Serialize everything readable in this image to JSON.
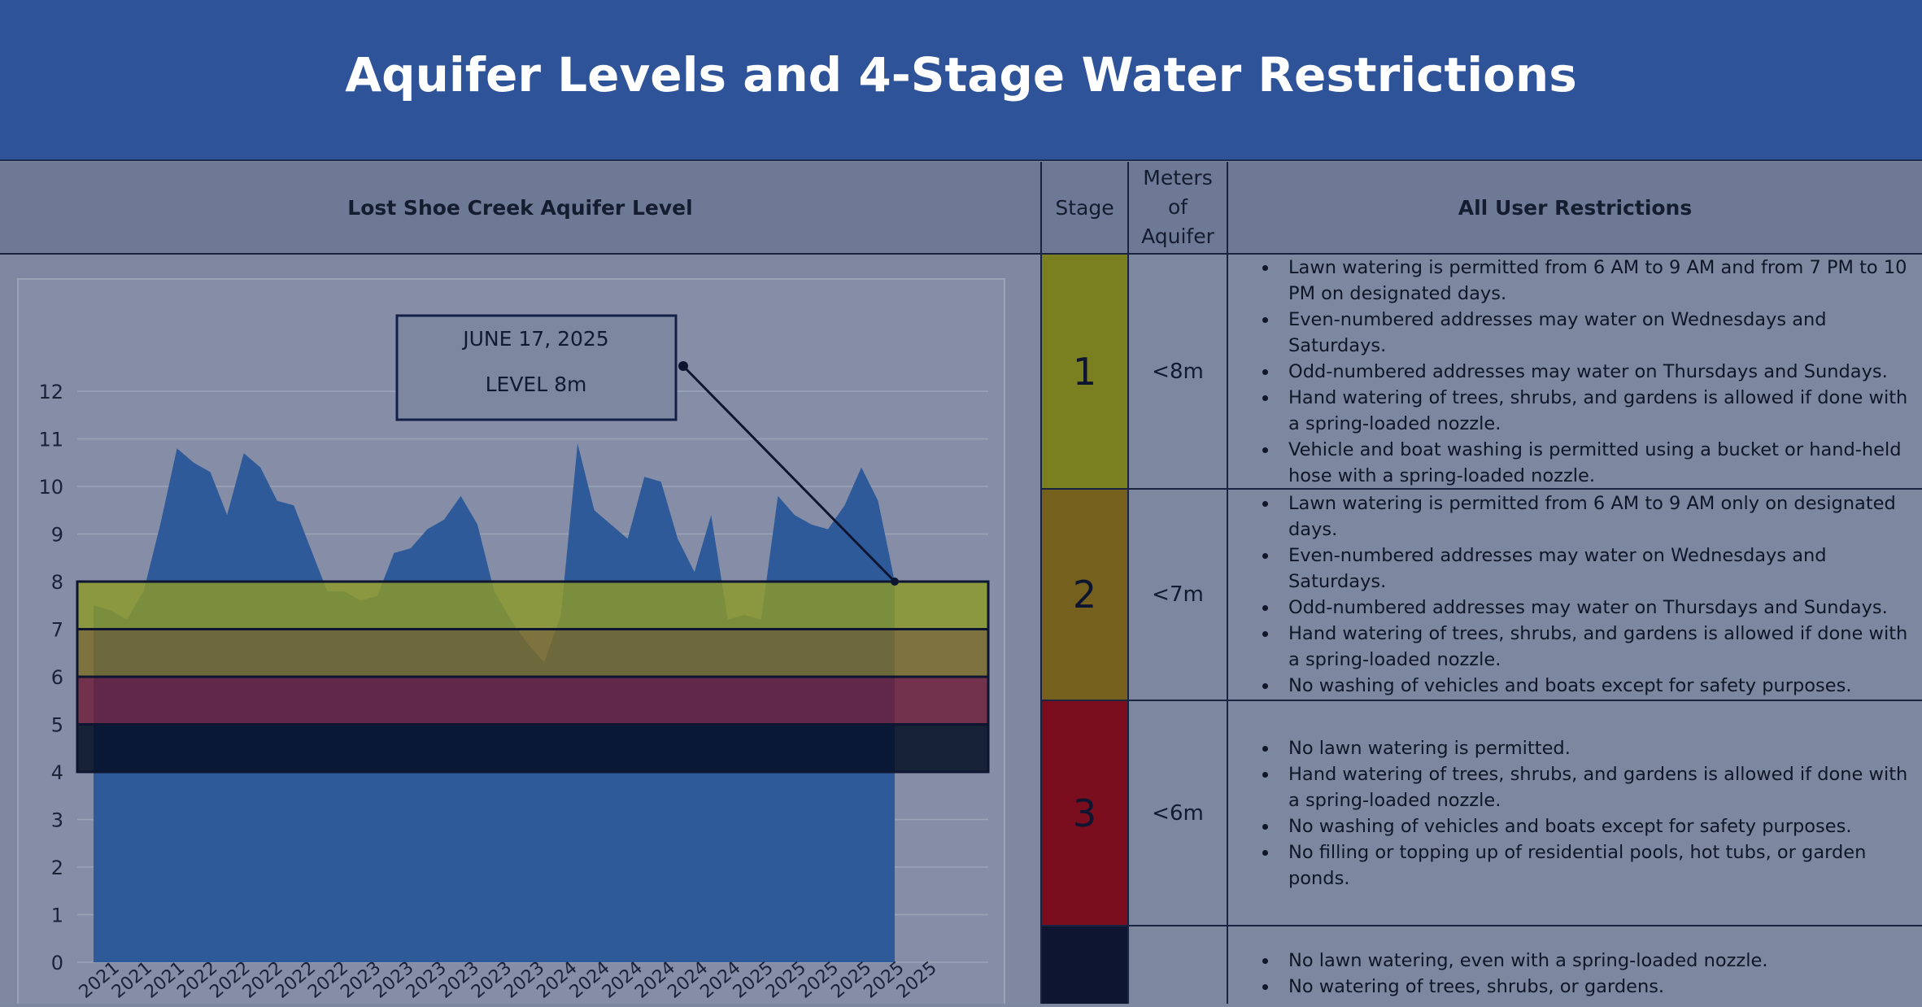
{
  "header": {
    "title": "Aquifer Levels and 4-Stage Water Restrictions"
  },
  "table_headers": {
    "chart": "Lost Shoe Creek Aquifer Level",
    "stage": "Stage",
    "meters": "Meters of Aquifer",
    "restrictions": "All User Restrictions"
  },
  "stages": [
    {
      "stage": "1",
      "meters": "<8m",
      "color": "#7a7f20",
      "restrictions": [
        "Lawn watering is permitted from 6 AM to 9 AM and from 7 PM to 10 PM on designated days.",
        "Even-numbered addresses may water on Wednesdays and Saturdays.",
        "Odd-numbered addresses may water on Thursdays and Sundays.",
        "Hand watering of trees, shrubs, and gardens is allowed if done with a spring-loaded nozzle.",
        "Vehicle and boat washing is permitted using a bucket or hand-held hose with a spring-loaded nozzle."
      ]
    },
    {
      "stage": "2",
      "meters": "<7m",
      "color": "#76601e",
      "restrictions": [
        "Lawn watering is permitted from 6 AM to 9 AM only on designated days.",
        "Even-numbered addresses may water on Wednesdays and Saturdays.",
        "Odd-numbered addresses may water on Thursdays and Sundays.",
        "Hand watering of trees, shrubs, and gardens is allowed if done with a spring-loaded nozzle.",
        "No washing of vehicles and boats except for safety purposes."
      ]
    },
    {
      "stage": "3",
      "meters": "<6m",
      "color": "#7a0d1e",
      "restrictions": [
        "No lawn watering is permitted.",
        "Hand watering of trees, shrubs, and gardens is allowed if done with a spring-loaded nozzle.",
        "No washing of vehicles and boats except for safety purposes.",
        "No filling or topping up of residential pools, hot tubs, or garden ponds."
      ]
    },
    {
      "stage": "",
      "meters": "",
      "color": "#0e1530",
      "restrictions": [
        "No lawn watering, even with a spring-loaded nozzle.",
        "No watering of trees, shrubs, or gardens."
      ]
    }
  ],
  "chart_data": {
    "type": "area",
    "title": "Lost Shoe Creek Aquifer Level",
    "xlabel": "",
    "ylabel": "",
    "ylim": [
      0,
      12
    ],
    "yticks": [
      0,
      1,
      2,
      3,
      4,
      5,
      6,
      7,
      8,
      9,
      10,
      11,
      12
    ],
    "grid": true,
    "series_color": "#2e5a9a",
    "x_tick_labels": [
      "2021",
      "2021",
      "2021",
      "2022",
      "2022",
      "2022",
      "2022",
      "2022",
      "2023",
      "2023",
      "2023",
      "2023",
      "2023",
      "2023",
      "2024",
      "2024",
      "2024",
      "2024",
      "2024",
      "2024",
      "2025",
      "2025",
      "2025",
      "2025",
      "2025",
      "2025"
    ],
    "values": [
      7.5,
      7.4,
      7.2,
      7.8,
      9.2,
      10.8,
      10.5,
      10.3,
      9.4,
      10.7,
      10.4,
      9.7,
      9.6,
      8.7,
      7.8,
      7.8,
      7.6,
      7.7,
      8.6,
      8.7,
      9.1,
      9.3,
      9.8,
      9.2,
      7.8,
      7.2,
      6.7,
      6.3,
      7.3,
      10.9,
      9.5,
      9.2,
      8.9,
      10.2,
      10.1,
      8.9,
      8.2,
      9.4,
      7.2,
      7.3,
      7.2,
      9.8,
      9.4,
      9.2,
      9.1,
      9.6,
      10.4,
      9.7,
      8.0
    ],
    "bands": [
      {
        "stage": "1",
        "from": 7,
        "to": 8,
        "color": "#8c9a2a"
      },
      {
        "stage": "2",
        "from": 6,
        "to": 7,
        "color": "#7c6b28"
      },
      {
        "stage": "3",
        "from": 5,
        "to": 6,
        "color": "#6e1d38"
      },
      {
        "stage": "4",
        "from": 4,
        "to": 5,
        "color": "#000a1e"
      }
    ],
    "annotation": {
      "date": "JUNE 17, 2025",
      "level": "LEVEL 8m",
      "value": 8
    }
  }
}
